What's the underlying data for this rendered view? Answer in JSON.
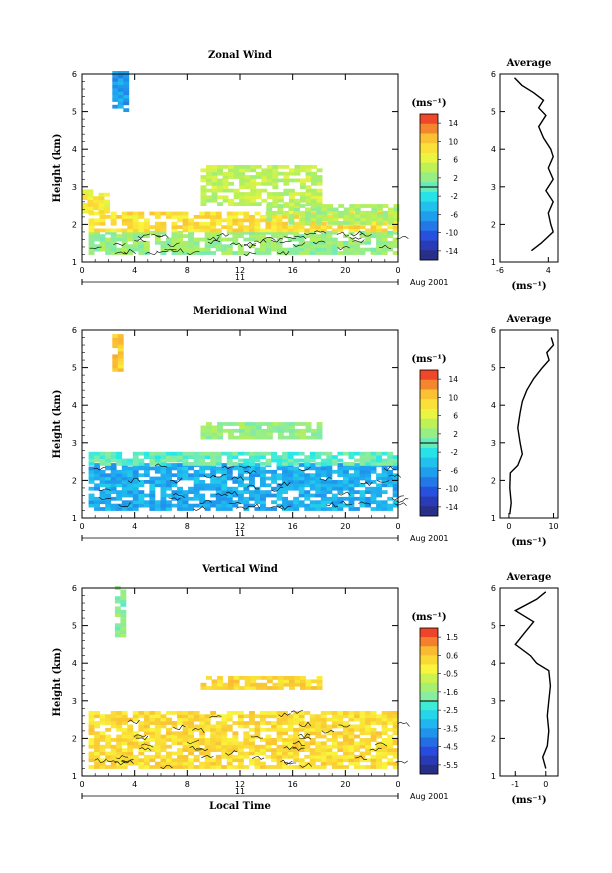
{
  "figure": {
    "x_axis_label": "Local Time",
    "date_label": "Aug 2001",
    "day_label": "11"
  },
  "chart_data": [
    {
      "type": "heatmap",
      "title": "Zonal Wind",
      "ylabel": "Height (km)",
      "xlim": [
        0,
        24
      ],
      "ylim": [
        1,
        6
      ],
      "x_ticks": [
        "0",
        "4",
        "8",
        "12",
        "16",
        "20",
        "0"
      ],
      "y_ticks": [
        "1",
        "2",
        "3",
        "4",
        "5",
        "6"
      ],
      "colorbar": {
        "unit": "(ms⁻¹)",
        "min": -15,
        "max": 15,
        "step": 2,
        "labels": [
          "14",
          "10",
          "6",
          "2",
          "-2",
          "-6",
          "-10",
          "-14"
        ]
      },
      "regions": [
        {
          "x": [
            2.3,
            3.2
          ],
          "y": [
            5.0,
            6.0
          ],
          "value": -6
        },
        {
          "x": [
            0.5,
            24
          ],
          "y": [
            1.2,
            1.8
          ],
          "value": 2
        },
        {
          "x": [
            0.5,
            24
          ],
          "y": [
            1.8,
            2.3
          ],
          "value": 8
        },
        {
          "x": [
            0,
            1.8
          ],
          "y": [
            2.3,
            2.9
          ],
          "value": 7
        },
        {
          "x": [
            14,
            24
          ],
          "y": [
            2.0,
            2.5
          ],
          "value": 3
        },
        {
          "x": [
            9,
            18
          ],
          "y": [
            2.5,
            3.5
          ],
          "value": 4
        }
      ],
      "average": {
        "title": "Average",
        "xlabel": "(ms⁻¹)",
        "xlim": [
          -6,
          6
        ],
        "x_ticks": [
          "-6",
          "4"
        ],
        "height": [
          1.3,
          1.5,
          1.8,
          2.0,
          2.3,
          2.6,
          2.9,
          3.2,
          3.5,
          3.8,
          4.0,
          4.3,
          4.6,
          4.9,
          5.1,
          5.3,
          5.5,
          5.7,
          5.9
        ],
        "value": [
          0.5,
          2.5,
          5.0,
          4.5,
          4.0,
          5.0,
          3.5,
          5.0,
          4.0,
          5.0,
          4.5,
          3.0,
          2.0,
          3.5,
          2.0,
          3.0,
          1.0,
          -1.5,
          -3.0
        ]
      }
    },
    {
      "type": "heatmap",
      "title": "Meridional Wind",
      "ylabel": "Height (km)",
      "xlim": [
        0,
        24
      ],
      "ylim": [
        1,
        6
      ],
      "x_ticks": [
        "0",
        "4",
        "8",
        "12",
        "16",
        "20",
        "0"
      ],
      "y_ticks": [
        "1",
        "2",
        "3",
        "4",
        "5",
        "6"
      ],
      "colorbar": {
        "unit": "(ms⁻¹)",
        "min": -15,
        "max": 15,
        "step": 2,
        "labels": [
          "14",
          "10",
          "6",
          "2",
          "-2",
          "-6",
          "-10",
          "-14"
        ]
      },
      "regions": [
        {
          "x": [
            2.3,
            3.0
          ],
          "y": [
            4.9,
            5.8
          ],
          "value": 9
        },
        {
          "x": [
            0.5,
            24
          ],
          "y": [
            1.2,
            2.4
          ],
          "value": -5
        },
        {
          "x": [
            0.5,
            24
          ],
          "y": [
            2.4,
            2.7
          ],
          "value": 0
        },
        {
          "x": [
            9,
            18
          ],
          "y": [
            3.1,
            3.5
          ],
          "value": 2
        }
      ],
      "average": {
        "title": "Average",
        "xlabel": "(ms⁻¹)",
        "xlim": [
          -2,
          11
        ],
        "x_ticks": [
          "0",
          "10"
        ],
        "height": [
          1.1,
          1.4,
          1.8,
          2.2,
          2.4,
          2.7,
          3.0,
          3.4,
          3.8,
          4.1,
          4.4,
          4.7,
          5.0,
          5.2,
          5.4,
          5.6,
          5.8
        ],
        "value": [
          0.2,
          0.5,
          0.2,
          0.3,
          2.0,
          3.0,
          2.5,
          2.0,
          2.5,
          3.0,
          4.0,
          5.5,
          7.5,
          9.0,
          8.5,
          10.0,
          9.5
        ]
      }
    },
    {
      "type": "heatmap",
      "title": "Vertical Wind",
      "ylabel": "Height (km)",
      "xlim": [
        0,
        24
      ],
      "ylim": [
        1,
        6
      ],
      "x_ticks": [
        "0",
        "4",
        "8",
        "12",
        "16",
        "20",
        "0"
      ],
      "y_ticks": [
        "1",
        "2",
        "3",
        "4",
        "5",
        "6"
      ],
      "colorbar": {
        "unit": "(ms⁻¹)",
        "min": -6,
        "max": 2,
        "step": 0.5,
        "labels": [
          "1.5",
          "0.6",
          "-0.5",
          "-1.6",
          "-2.5",
          "-3.5",
          "-4.5",
          "-5.5"
        ]
      },
      "regions": [
        {
          "x": [
            2.5,
            3.0
          ],
          "y": [
            4.7,
            6.0
          ],
          "value": -1.6
        },
        {
          "x": [
            0.5,
            24
          ],
          "y": [
            1.2,
            2.7
          ],
          "value": 0.2
        },
        {
          "x": [
            9,
            18
          ],
          "y": [
            3.3,
            3.6
          ],
          "value": 0.3
        }
      ],
      "average": {
        "title": "Average",
        "xlabel": "(ms⁻¹)",
        "xlim": [
          -1.5,
          0.4
        ],
        "x_ticks": [
          "-1",
          "0"
        ],
        "height": [
          1.2,
          1.5,
          1.8,
          2.2,
          2.6,
          3.0,
          3.4,
          3.8,
          4.0,
          4.2,
          4.5,
          4.8,
          5.1,
          5.4,
          5.7,
          5.9
        ],
        "value": [
          0.0,
          -0.1,
          0.05,
          0.1,
          0.05,
          0.1,
          0.15,
          0.1,
          -0.3,
          -0.5,
          -1.0,
          -0.7,
          -0.4,
          -1.0,
          -0.3,
          0.0
        ]
      }
    }
  ]
}
